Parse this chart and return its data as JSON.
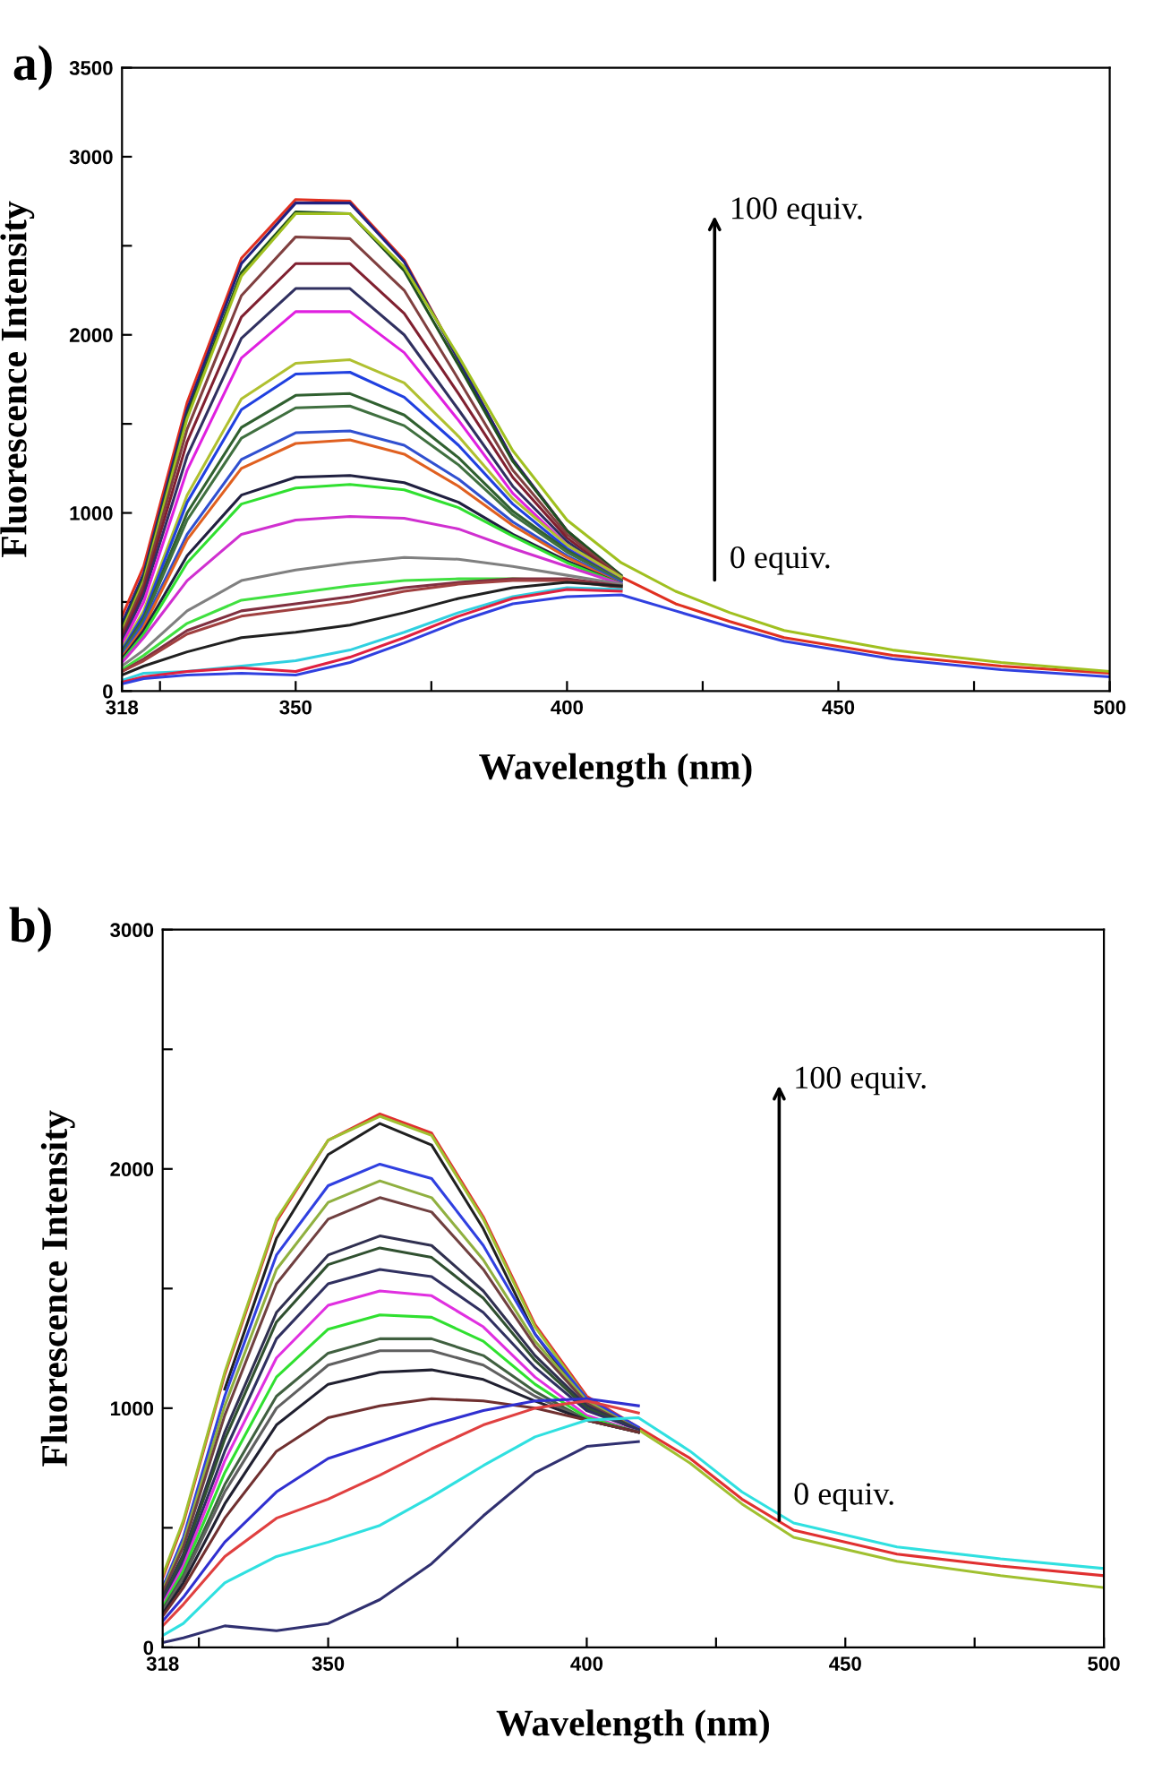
{
  "chart_data": [
    {
      "type": "line",
      "title": "a)",
      "xlabel": "Wavelength (nm)",
      "ylabel": "Fluorescence Intensity",
      "annotations": [
        "100 equiv.",
        "0 equiv."
      ],
      "xlim": [
        318,
        500
      ],
      "xticks": [
        318,
        {
          "value": 325,
          "label": null
        },
        350,
        {
          "value": 375,
          "label": null
        },
        400,
        {
          "value": 425,
          "label": null
        },
        450,
        {
          "value": 475,
          "label": null
        },
        500
      ],
      "ylim": [
        0,
        3500
      ],
      "yticks": [
        0,
        {
          "value": 500,
          "label": null
        },
        1000,
        {
          "value": 1500,
          "label": null
        },
        2000,
        {
          "value": 2500,
          "label": null
        },
        3000,
        3500
      ],
      "grid": false,
      "legend": false,
      "marker": "none",
      "line_style": "solid",
      "x": [
        318,
        322,
        330,
        340,
        350,
        360,
        370,
        380,
        390,
        400,
        410,
        420,
        430,
        440,
        460,
        480,
        500
      ],
      "series": [
        {
          "color": "#e03020",
          "values": [
            420,
            700,
            1620,
            2430,
            2760,
            2750,
            2420,
            1860,
            1300,
            900,
            640,
            490,
            390,
            300,
            200,
            140,
            100
          ]
        },
        {
          "color": "#202080",
          "values": [
            380,
            660,
            1580,
            2400,
            2740,
            2740,
            2410,
            1860,
            1300,
            900,
            640,
            null,
            null,
            null,
            null,
            null,
            null
          ]
        },
        {
          "color": "#205020",
          "values": [
            350,
            640,
            1550,
            2350,
            2690,
            2680,
            2360,
            1830,
            1290,
            900,
            650,
            null,
            null,
            null,
            null,
            null,
            null
          ]
        },
        {
          "color": "#a0c020",
          "values": [
            340,
            620,
            1530,
            2330,
            2680,
            2680,
            2380,
            1880,
            1350,
            960,
            720,
            560,
            440,
            340,
            230,
            160,
            110
          ]
        },
        {
          "color": "#804040",
          "values": [
            320,
            600,
            1470,
            2220,
            2550,
            2540,
            2250,
            1750,
            1240,
            880,
            640,
            null,
            null,
            null,
            null,
            null,
            null
          ]
        },
        {
          "color": "#802030",
          "values": [
            300,
            570,
            1400,
            2100,
            2400,
            2400,
            2120,
            1670,
            1200,
            860,
            630,
            null,
            null,
            null,
            null,
            null,
            null
          ]
        },
        {
          "color": "#303060",
          "values": [
            280,
            540,
            1320,
            1980,
            2260,
            2260,
            2000,
            1580,
            1150,
            840,
            620,
            null,
            null,
            null,
            null,
            null,
            null
          ]
        },
        {
          "color": "#e020e0",
          "values": [
            260,
            500,
            1240,
            1870,
            2130,
            2130,
            1900,
            1520,
            1110,
            820,
            620,
            null,
            null,
            null,
            null,
            null,
            null
          ]
        },
        {
          "color": "#b0c030",
          "values": [
            240,
            450,
            1100,
            1640,
            1840,
            1860,
            1730,
            1430,
            1080,
            820,
            640,
            null,
            null,
            null,
            null,
            null,
            null
          ]
        },
        {
          "color": "#2040e0",
          "values": [
            230,
            430,
            1060,
            1580,
            1780,
            1790,
            1650,
            1380,
            1050,
            800,
            620,
            null,
            null,
            null,
            null,
            null,
            null
          ]
        },
        {
          "color": "#306030",
          "values": [
            220,
            410,
            1000,
            1480,
            1660,
            1670,
            1550,
            1310,
            1010,
            790,
            620,
            null,
            null,
            null,
            null,
            null,
            null
          ]
        },
        {
          "color": "#407040",
          "values": [
            210,
            400,
            960,
            1420,
            1590,
            1600,
            1490,
            1270,
            990,
            780,
            620,
            null,
            null,
            null,
            null,
            null,
            null
          ]
        },
        {
          "color": "#3050d0",
          "values": [
            200,
            380,
            880,
            1300,
            1450,
            1460,
            1380,
            1190,
            950,
            760,
            610,
            null,
            null,
            null,
            null,
            null,
            null
          ]
        },
        {
          "color": "#e06020",
          "values": [
            190,
            360,
            850,
            1250,
            1390,
            1410,
            1330,
            1150,
            930,
            750,
            600,
            null,
            null,
            null,
            null,
            null,
            null
          ]
        },
        {
          "color": "#202040",
          "values": [
            180,
            340,
            760,
            1100,
            1200,
            1210,
            1170,
            1060,
            880,
            730,
            600,
            null,
            null,
            null,
            null,
            null,
            null
          ]
        },
        {
          "color": "#30e030",
          "values": [
            170,
            320,
            720,
            1050,
            1140,
            1160,
            1130,
            1030,
            870,
            720,
            600,
            null,
            null,
            null,
            null,
            null,
            null
          ]
        },
        {
          "color": "#d030d0",
          "values": [
            160,
            300,
            620,
            880,
            960,
            980,
            970,
            910,
            800,
            700,
            600,
            null,
            null,
            null,
            null,
            null,
            null
          ]
        },
        {
          "color": "#808080",
          "values": [
            140,
            230,
            450,
            620,
            680,
            720,
            750,
            740,
            700,
            650,
            600,
            null,
            null,
            null,
            null,
            null,
            null
          ]
        },
        {
          "color": "#40e040",
          "values": [
            120,
            200,
            380,
            510,
            550,
            590,
            620,
            630,
            630,
            620,
            590,
            null,
            null,
            null,
            null,
            null,
            null
          ]
        },
        {
          "color": "#803040",
          "values": [
            110,
            180,
            340,
            450,
            490,
            530,
            580,
            610,
            630,
            630,
            590,
            null,
            null,
            null,
            null,
            null,
            null
          ]
        },
        {
          "color": "#a04040",
          "values": [
            110,
            170,
            320,
            420,
            460,
            500,
            560,
            600,
            620,
            620,
            580,
            null,
            null,
            null,
            null,
            null,
            null
          ]
        },
        {
          "color": "#202020",
          "values": [
            90,
            140,
            220,
            300,
            330,
            370,
            440,
            520,
            580,
            610,
            590,
            null,
            null,
            null,
            null,
            null,
            null
          ]
        },
        {
          "color": "#30d0e0",
          "values": [
            60,
            100,
            110,
            140,
            170,
            230,
            330,
            440,
            530,
            580,
            570,
            null,
            null,
            null,
            null,
            null,
            null
          ]
        },
        {
          "color": "#e02040",
          "values": [
            50,
            80,
            110,
            130,
            110,
            190,
            300,
            420,
            520,
            570,
            560,
            null,
            null,
            null,
            null,
            null,
            null
          ]
        },
        {
          "color": "#3040e0",
          "values": [
            40,
            70,
            90,
            100,
            90,
            160,
            270,
            390,
            490,
            530,
            540,
            450,
            360,
            280,
            180,
            120,
            80
          ]
        }
      ]
    },
    {
      "type": "line",
      "title": "b)",
      "xlabel": "Wavelength (nm)",
      "ylabel": "Fluorescence Intensity",
      "annotations": [
        "100 equiv.",
        "0 equiv."
      ],
      "xlim": [
        318,
        500
      ],
      "xticks": [
        318,
        {
          "value": 325,
          "label": null
        },
        350,
        {
          "value": 375,
          "label": null
        },
        400,
        {
          "value": 425,
          "label": null
        },
        450,
        {
          "value": 475,
          "label": null
        },
        500
      ],
      "ylim": [
        0,
        3000
      ],
      "yticks": [
        0,
        {
          "value": 500,
          "label": null
        },
        1000,
        {
          "value": 1500,
          "label": null
        },
        2000,
        {
          "value": 2500,
          "label": null
        },
        3000
      ],
      "grid": false,
      "legend": false,
      "marker": "none",
      "line_style": "solid",
      "x": [
        318,
        322,
        330,
        340,
        350,
        360,
        370,
        380,
        390,
        400,
        410,
        420,
        430,
        440,
        460,
        480,
        500
      ],
      "series": [
        {
          "color": "#e03030",
          "values": [
            290,
            520,
            1140,
            1780,
            2120,
            2230,
            2150,
            1800,
            1350,
            1050,
            920,
            790,
            620,
            490,
            390,
            340,
            300
          ]
        },
        {
          "color": "#202020",
          "values": [
            null,
            null,
            1080,
            1710,
            2060,
            2190,
            2100,
            1750,
            1310,
            1020,
            900,
            null,
            null,
            null,
            null,
            null,
            null
          ]
        },
        {
          "color": "#a0c030",
          "values": [
            300,
            530,
            1150,
            1790,
            2120,
            2220,
            2140,
            1790,
            1340,
            1040,
            910,
            770,
            600,
            460,
            360,
            300,
            250
          ]
        },
        {
          "color": "#3040e0",
          "values": [
            250,
            460,
            1050,
            1640,
            1930,
            2020,
            1960,
            1680,
            1310,
            1040,
            920,
            null,
            null,
            null,
            null,
            null,
            null
          ]
        },
        {
          "color": "#90b040",
          "values": [
            240,
            440,
            1010,
            1580,
            1860,
            1950,
            1880,
            1620,
            1280,
            1030,
            910,
            null,
            null,
            null,
            null,
            null,
            null
          ]
        },
        {
          "color": "#704040",
          "values": [
            230,
            420,
            970,
            1520,
            1790,
            1880,
            1820,
            1580,
            1260,
            1020,
            910,
            null,
            null,
            null,
            null,
            null,
            null
          ]
        },
        {
          "color": "#303050",
          "values": [
            210,
            390,
            900,
            1400,
            1640,
            1720,
            1680,
            1490,
            1220,
            1010,
            910,
            null,
            null,
            null,
            null,
            null,
            null
          ]
        },
        {
          "color": "#305030",
          "values": [
            200,
            380,
            870,
            1360,
            1600,
            1670,
            1630,
            1460,
            1200,
            1000,
            910,
            null,
            null,
            null,
            null,
            null,
            null
          ]
        },
        {
          "color": "#303060",
          "values": [
            190,
            360,
            820,
            1290,
            1520,
            1580,
            1550,
            1400,
            1170,
            990,
            910,
            null,
            null,
            null,
            null,
            null,
            null
          ]
        },
        {
          "color": "#e030e0",
          "values": [
            180,
            340,
            780,
            1210,
            1430,
            1490,
            1470,
            1340,
            1130,
            970,
            900,
            null,
            null,
            null,
            null,
            null,
            null
          ]
        },
        {
          "color": "#30e030",
          "values": [
            170,
            320,
            730,
            1130,
            1330,
            1390,
            1380,
            1280,
            1100,
            960,
            900,
            null,
            null,
            null,
            null,
            null,
            null
          ]
        },
        {
          "color": "#406040",
          "values": [
            160,
            300,
            680,
            1050,
            1230,
            1290,
            1290,
            1220,
            1070,
            950,
            900,
            null,
            null,
            null,
            null,
            null,
            null
          ]
        },
        {
          "color": "#606060",
          "values": [
            150,
            290,
            650,
            1000,
            1180,
            1240,
            1240,
            1180,
            1050,
            950,
            900,
            null,
            null,
            null,
            null,
            null,
            null
          ]
        },
        {
          "color": "#202030",
          "values": [
            140,
            270,
            600,
            930,
            1100,
            1150,
            1160,
            1120,
            1030,
            950,
            900,
            null,
            null,
            null,
            null,
            null,
            null
          ]
        },
        {
          "color": "#703030",
          "values": [
            130,
            250,
            540,
            820,
            960,
            1010,
            1040,
            1030,
            1000,
            950,
            900,
            null,
            null,
            null,
            null,
            null,
            null
          ]
        },
        {
          "color": "#3030d0",
          "values": [
            110,
            210,
            440,
            650,
            790,
            860,
            930,
            990,
            1030,
            1040,
            1010,
            null,
            null,
            null,
            null,
            null,
            null
          ]
        },
        {
          "color": "#e04040",
          "values": [
            90,
            180,
            380,
            540,
            620,
            720,
            830,
            930,
            1000,
            1030,
            980,
            null,
            null,
            null,
            null,
            null,
            null
          ]
        },
        {
          "color": "#30e0e0",
          "values": [
            50,
            100,
            270,
            380,
            440,
            510,
            630,
            760,
            880,
            950,
            960,
            820,
            650,
            520,
            420,
            370,
            330
          ]
        },
        {
          "color": "#303070",
          "values": [
            20,
            40,
            90,
            70,
            100,
            200,
            350,
            550,
            730,
            840,
            860,
            null,
            null,
            null,
            null,
            null,
            null
          ]
        }
      ]
    }
  ]
}
